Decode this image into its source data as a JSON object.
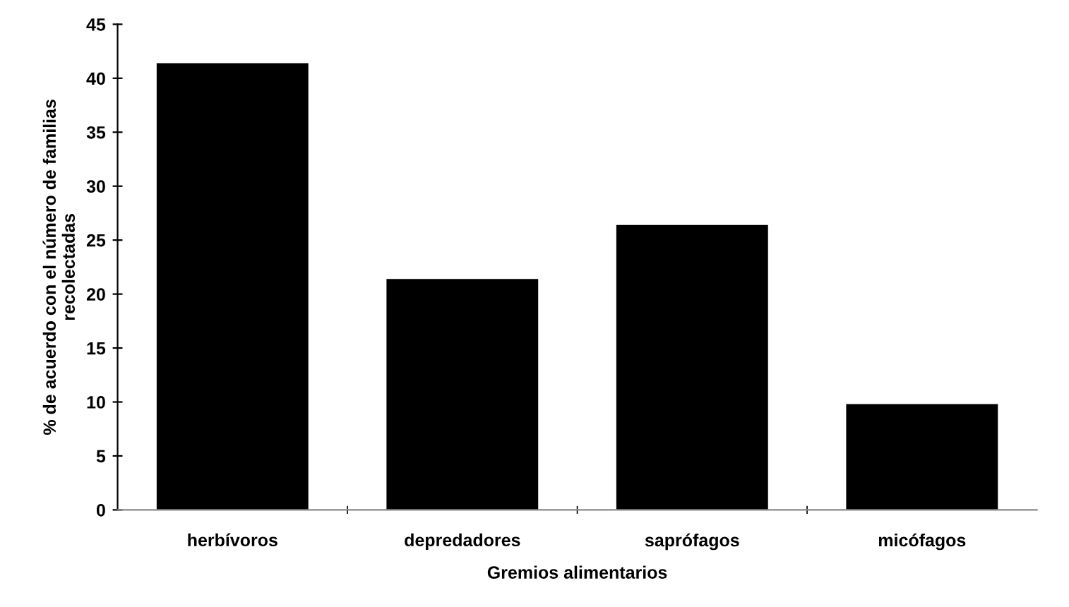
{
  "chart_data": {
    "type": "bar",
    "xlabel": "Gremios alimentarios",
    "ylabel": "% de acuerdo con el número de familias\nrecolectadas",
    "categories": [
      "herbívoros",
      "depredadores",
      "saprófagos",
      "micófagos"
    ],
    "values": [
      41.4,
      21.4,
      26.4,
      9.8
    ],
    "color": "#000000",
    "ylim": [
      0,
      45
    ],
    "yticks": [
      0,
      5,
      10,
      15,
      20,
      25,
      30,
      35,
      40,
      45
    ],
    "grid": false
  }
}
